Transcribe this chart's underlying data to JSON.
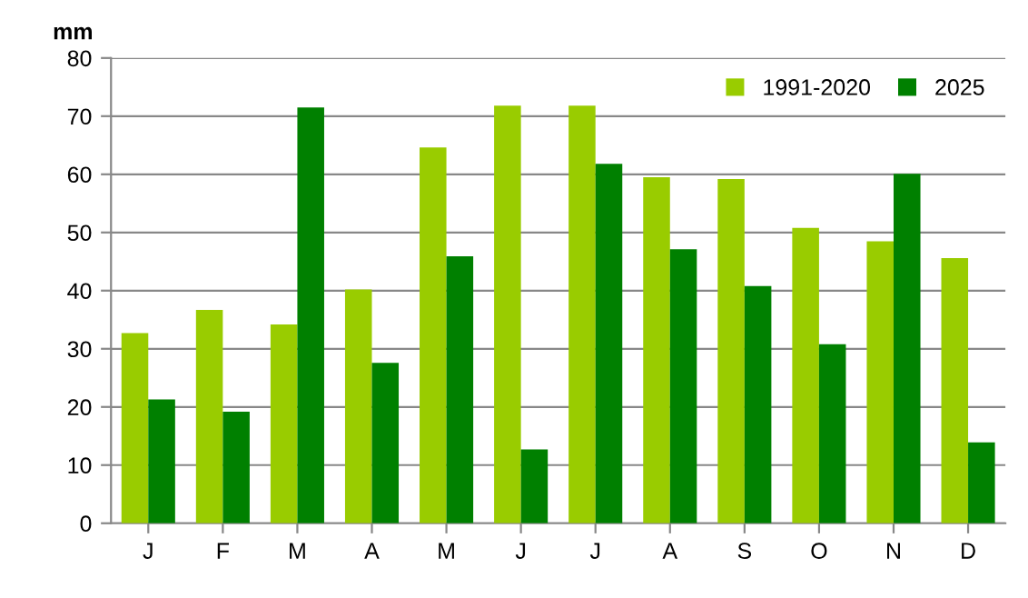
{
  "chart_data": {
    "type": "bar",
    "ylabel": "mm",
    "categories": [
      "J",
      "F",
      "M",
      "A",
      "M",
      "J",
      "J",
      "A",
      "S",
      "O",
      "N",
      "D"
    ],
    "series": [
      {
        "name": "1991-2020",
        "color": "#99cc00",
        "values": [
          32.7,
          36.7,
          34.2,
          40.2,
          64.6,
          71.8,
          71.8,
          59.5,
          59.2,
          50.8,
          48.5,
          45.6
        ]
      },
      {
        "name": "2025",
        "color": "#008000",
        "values": [
          21.3,
          19.2,
          71.5,
          27.6,
          45.9,
          12.7,
          61.8,
          47.1,
          40.8,
          30.8,
          60.1,
          13.9
        ]
      }
    ],
    "ylim": [
      0,
      80
    ],
    "yticks": [
      0,
      10,
      20,
      30,
      40,
      50,
      60,
      70,
      80
    ],
    "grid": "y",
    "legend": "top right"
  }
}
